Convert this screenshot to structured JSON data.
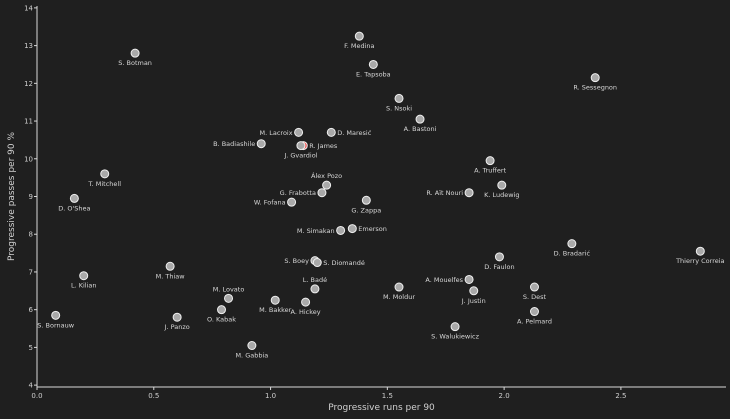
{
  "chart_data": {
    "type": "scatter",
    "xlabel": "Progressive runs per 90",
    "ylabel": "Progressive passes per 90 %",
    "xlim": [
      0.0,
      2.95
    ],
    "ylim": [
      3.95,
      14.05
    ],
    "xticks": [
      {
        "value": 0.0,
        "label": "0.0"
      },
      {
        "value": 0.5,
        "label": "0.5"
      },
      {
        "value": 1.0,
        "label": "1.0"
      },
      {
        "value": 1.5,
        "label": "1.5"
      },
      {
        "value": 2.0,
        "label": "2.0"
      },
      {
        "value": 2.5,
        "label": "2.5"
      }
    ],
    "yticks": [
      {
        "value": 4,
        "label": "4"
      },
      {
        "value": 5,
        "label": "5"
      },
      {
        "value": 6,
        "label": "6"
      },
      {
        "value": 7,
        "label": "7"
      },
      {
        "value": 8,
        "label": "8"
      },
      {
        "value": 9,
        "label": "9"
      },
      {
        "value": 10,
        "label": "10"
      },
      {
        "value": 11,
        "label": "11"
      },
      {
        "value": 12,
        "label": "12"
      },
      {
        "value": 13,
        "label": "13"
      },
      {
        "value": 14,
        "label": "14"
      }
    ],
    "grid": false,
    "colors": {
      "point": "#a9a9a9",
      "highlight": "#ef5350",
      "text": "#d6d6d6",
      "axis": "#d8d8d8",
      "background": "#1f1f1f"
    },
    "points": [
      {
        "name": "F. Medina",
        "x": 1.38,
        "y": 13.25,
        "pos": "below"
      },
      {
        "name": "S. Botman",
        "x": 0.42,
        "y": 12.8,
        "pos": "below"
      },
      {
        "name": "E. Tapsoba",
        "x": 1.44,
        "y": 12.5,
        "pos": "below"
      },
      {
        "name": "R. Sessegnon",
        "x": 2.39,
        "y": 12.15,
        "pos": "below"
      },
      {
        "name": "S. Nsoki",
        "x": 1.55,
        "y": 11.6,
        "pos": "below"
      },
      {
        "name": "A. Bastoni",
        "x": 1.64,
        "y": 11.05,
        "pos": "below"
      },
      {
        "name": "M. Lacroix",
        "x": 1.12,
        "y": 10.7,
        "pos": "left"
      },
      {
        "name": "D. Maresić",
        "x": 1.26,
        "y": 10.7,
        "pos": "right"
      },
      {
        "name": "B. Badiashile",
        "x": 0.96,
        "y": 10.4,
        "pos": "left"
      },
      {
        "name": "R. James",
        "x": 1.14,
        "y": 10.35,
        "pos": "right",
        "highlight": true
      },
      {
        "name": "J. Gvardiol",
        "x": 1.13,
        "y": 10.35,
        "pos": "below"
      },
      {
        "name": "A. Truffert",
        "x": 1.94,
        "y": 9.95,
        "pos": "below"
      },
      {
        "name": "T. Mitchell",
        "x": 0.29,
        "y": 9.6,
        "pos": "below"
      },
      {
        "name": "Álex Pozo",
        "x": 1.24,
        "y": 9.3,
        "pos": "above"
      },
      {
        "name": "K. Ludewig",
        "x": 1.99,
        "y": 9.3,
        "pos": "below"
      },
      {
        "name": "G. Frabotta",
        "x": 1.22,
        "y": 9.1,
        "pos": "left"
      },
      {
        "name": "R. Aït Nouri",
        "x": 1.85,
        "y": 9.1,
        "pos": "left"
      },
      {
        "name": "D. O'Shea",
        "x": 0.16,
        "y": 8.95,
        "pos": "below"
      },
      {
        "name": "G. Zappa",
        "x": 1.41,
        "y": 8.9,
        "pos": "below"
      },
      {
        "name": "W. Fofana",
        "x": 1.09,
        "y": 8.85,
        "pos": "left"
      },
      {
        "name": "M. Simakan",
        "x": 1.3,
        "y": 8.1,
        "pos": "left"
      },
      {
        "name": "Emerson",
        "x": 1.35,
        "y": 8.15,
        "pos": "right"
      },
      {
        "name": "D. Bradarić",
        "x": 2.29,
        "y": 7.75,
        "pos": "below"
      },
      {
        "name": "Thierry Correia",
        "x": 2.84,
        "y": 7.55,
        "pos": "below"
      },
      {
        "name": "D. Faulon",
        "x": 1.98,
        "y": 7.4,
        "pos": "below"
      },
      {
        "name": "S. Boey",
        "x": 1.19,
        "y": 7.3,
        "pos": "left"
      },
      {
        "name": "S. Diomandé",
        "x": 1.2,
        "y": 7.25,
        "pos": "right"
      },
      {
        "name": "M. Thiaw",
        "x": 0.57,
        "y": 7.15,
        "pos": "below"
      },
      {
        "name": "L. Kilian",
        "x": 0.2,
        "y": 6.9,
        "pos": "below"
      },
      {
        "name": "A. Mouelfes",
        "x": 1.85,
        "y": 6.8,
        "pos": "left"
      },
      {
        "name": "M. Moldur",
        "x": 1.55,
        "y": 6.6,
        "pos": "below"
      },
      {
        "name": "S. Dest",
        "x": 2.13,
        "y": 6.6,
        "pos": "below"
      },
      {
        "name": "J. Justin",
        "x": 1.87,
        "y": 6.5,
        "pos": "below"
      },
      {
        "name": "L. Badé",
        "x": 1.19,
        "y": 6.55,
        "pos": "above"
      },
      {
        "name": "M. Lovato",
        "x": 0.82,
        "y": 6.3,
        "pos": "above"
      },
      {
        "name": "M. Bakker",
        "x": 1.02,
        "y": 6.25,
        "pos": "below"
      },
      {
        "name": "A. Hickey",
        "x": 1.15,
        "y": 6.2,
        "pos": "below"
      },
      {
        "name": "O. Kabak",
        "x": 0.79,
        "y": 6.0,
        "pos": "below"
      },
      {
        "name": "S. Bornauw",
        "x": 0.08,
        "y": 5.85,
        "pos": "below"
      },
      {
        "name": "J. Panzo",
        "x": 0.6,
        "y": 5.8,
        "pos": "below"
      },
      {
        "name": "A. Pelmard",
        "x": 2.13,
        "y": 5.95,
        "pos": "below"
      },
      {
        "name": "S. Walukiewicz",
        "x": 1.79,
        "y": 5.55,
        "pos": "below"
      },
      {
        "name": "M. Gabbia",
        "x": 0.92,
        "y": 5.05,
        "pos": "below"
      }
    ]
  }
}
